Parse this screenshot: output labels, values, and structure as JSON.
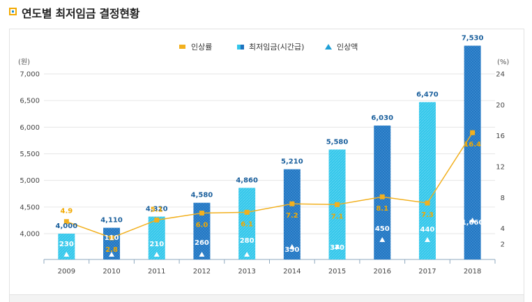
{
  "header": {
    "title": "연도별 최저임금 결정현황"
  },
  "chart_data": {
    "type": "bar",
    "categories": [
      "2009",
      "2010",
      "2011",
      "2012",
      "2013",
      "2014",
      "2015",
      "2016",
      "2017",
      "2018"
    ],
    "series": [
      {
        "name": "최저임금(시간급)",
        "type": "bar",
        "axis": "left",
        "values": [
          4000,
          4110,
          4320,
          4580,
          4860,
          5210,
          5580,
          6030,
          6470,
          7530
        ]
      },
      {
        "name": "인상률",
        "type": "line",
        "axis": "right",
        "values": [
          4.9,
          2.8,
          5.1,
          6.0,
          6.1,
          7.2,
          7.1,
          8.1,
          7.3,
          16.4
        ]
      },
      {
        "name": "인상액",
        "type": "marker",
        "axis": "none",
        "values": [
          230,
          110,
          210,
          260,
          280,
          350,
          370,
          450,
          440,
          1060
        ]
      }
    ],
    "legend": [
      "인상률",
      "최저임금(시간급)",
      "인상액"
    ],
    "legend_position": "top",
    "y_left": {
      "unit": "(원)",
      "ticks": [
        "4,000",
        "4,500",
        "5,000",
        "5,500",
        "6,000",
        "6,500",
        "7,000"
      ],
      "range": [
        3500,
        7500
      ]
    },
    "y_right": {
      "unit": "(%)",
      "ticks": [
        "2",
        "4",
        "8",
        "12",
        "16",
        "20",
        "24"
      ],
      "range": [
        0,
        24
      ]
    },
    "x_labels": [
      "2009",
      "2010",
      "2011",
      "2012",
      "2013",
      "2014",
      "2015",
      "2016",
      "2017",
      "2018"
    ],
    "value_labels": [
      "4,000",
      "4,110",
      "4,320",
      "4,580",
      "4,860",
      "5,210",
      "5,580",
      "6,030",
      "6,470",
      "7,530"
    ],
    "rate_labels": [
      "4.9",
      "2.8",
      "5.1",
      "6.0",
      "6.1",
      "7.2",
      "7.1",
      "8.1",
      "7.3",
      "16.4"
    ],
    "increase_labels": [
      "230",
      "110",
      "210",
      "260",
      "280",
      "350",
      "370",
      "450",
      "440",
      "1,060"
    ],
    "colors": {
      "light_bar": "#33c6ea",
      "dark_bar": "#1e73bf",
      "rate_line": "#f2b01e",
      "marker": "#ffffff"
    },
    "grid": true
  }
}
